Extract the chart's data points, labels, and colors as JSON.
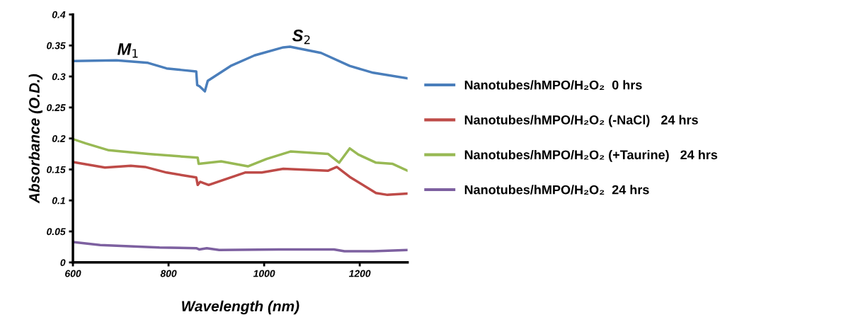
{
  "chart_data": {
    "type": "line",
    "xlabel": "Wavelength (nm)",
    "ylabel": "Absorbance (O.D.)",
    "xlim": [
      600,
      1300
    ],
    "xticks": [
      600,
      800,
      1000,
      1200
    ],
    "ylim": [
      0,
      0.4
    ],
    "yticks": [
      0,
      0.05,
      0.1,
      0.15,
      0.2,
      0.25,
      0.3,
      0.35,
      0.4
    ],
    "grid": false,
    "legend": "right",
    "marker": "none",
    "line_style": "solid",
    "annotations": [
      {
        "text": "M$_{1}$",
        "x": 691,
        "y": 0.326
      },
      {
        "text": "S$_{2}$",
        "x": 1054,
        "y": 0.348
      }
    ],
    "series": [
      {
        "name": "Nanotubes/hMPO/H₂O₂  0 hrs",
        "color": "#4a7ebb",
        "x": [
          600,
          691,
          757,
          796,
          858,
          860,
          865,
          876,
          882,
          930,
          980,
          1040,
          1054,
          1119,
          1179,
          1228,
          1300
        ],
        "values": [
          0.325,
          0.326,
          0.322,
          0.313,
          0.308,
          0.286,
          0.284,
          0.276,
          0.293,
          0.317,
          0.334,
          0.347,
          0.348,
          0.338,
          0.317,
          0.306,
          0.297
        ]
      },
      {
        "name": "Nanotubes/hMPO/H₂O₂ (-NaCl)   24 hrs",
        "color": "#be4b48",
        "x": [
          600,
          667,
          721,
          751,
          796,
          858,
          861,
          866,
          884,
          960,
          995,
          1040,
          1134,
          1152,
          1179,
          1234,
          1258,
          1300
        ],
        "values": [
          0.162,
          0.153,
          0.156,
          0.154,
          0.145,
          0.137,
          0.125,
          0.13,
          0.125,
          0.145,
          0.145,
          0.151,
          0.148,
          0.154,
          0.138,
          0.112,
          0.109,
          0.111
        ]
      },
      {
        "name": "Nanotubes/hMPO/H₂O₂ (+Taurine)   24 hrs",
        "color": "#98b954",
        "x": [
          600,
          627,
          675,
          757,
          861,
          863,
          910,
          966,
          1005,
          1055,
          1134,
          1157,
          1179,
          1197,
          1234,
          1269,
          1300
        ],
        "values": [
          0.199,
          0.192,
          0.181,
          0.175,
          0.169,
          0.159,
          0.163,
          0.155,
          0.167,
          0.179,
          0.175,
          0.161,
          0.184,
          0.174,
          0.161,
          0.159,
          0.148
        ]
      },
      {
        "name": "Nanotubes/hMPO/H₂O₂  24 hrs",
        "color": "#7d60a0",
        "x": [
          600,
          657,
          781,
          858,
          864,
          880,
          906,
          1030,
          1139,
          1146,
          1168,
          1228,
          1300
        ],
        "values": [
          0.033,
          0.028,
          0.024,
          0.023,
          0.021,
          0.023,
          0.02,
          0.021,
          0.021,
          0.021,
          0.018,
          0.018,
          0.02
        ]
      }
    ]
  }
}
